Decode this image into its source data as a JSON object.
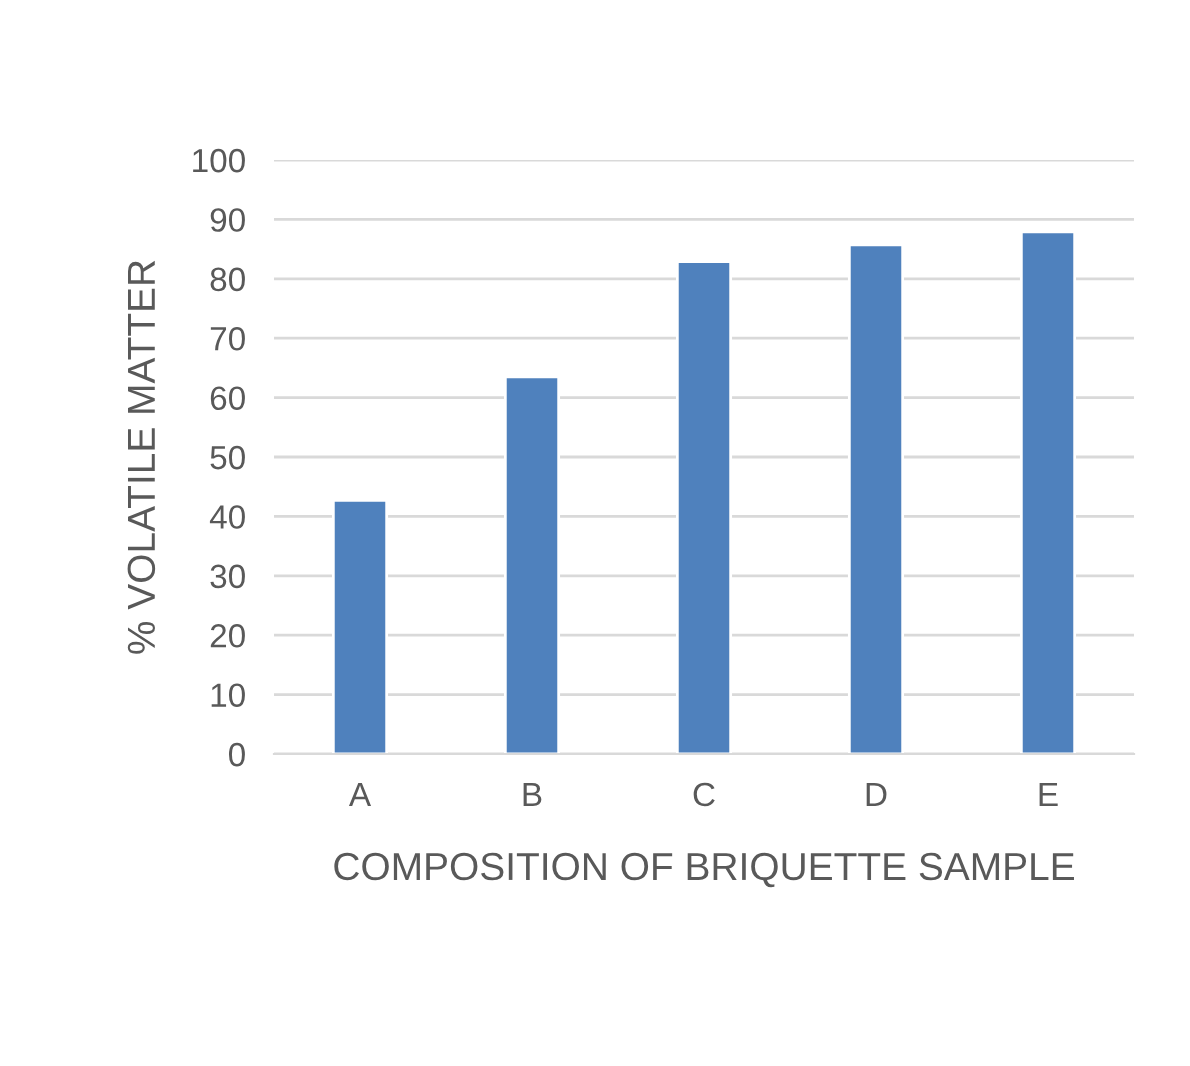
{
  "chart_data": {
    "type": "bar",
    "xlabel": "COMPOSITION OF BRIQUETTE SAMPLE",
    "ylabel": "% VOLATILE MATTER",
    "categories": [
      "A",
      "B",
      "C",
      "D",
      "E"
    ],
    "values": [
      42.7,
      63.5,
      82.9,
      85.7,
      87.9
    ],
    "color": "#4f81bd",
    "ylim": [
      0,
      100
    ],
    "yticks": [
      0,
      10,
      20,
      30,
      40,
      50,
      60,
      70,
      80,
      90,
      100
    ],
    "grid": "y"
  }
}
